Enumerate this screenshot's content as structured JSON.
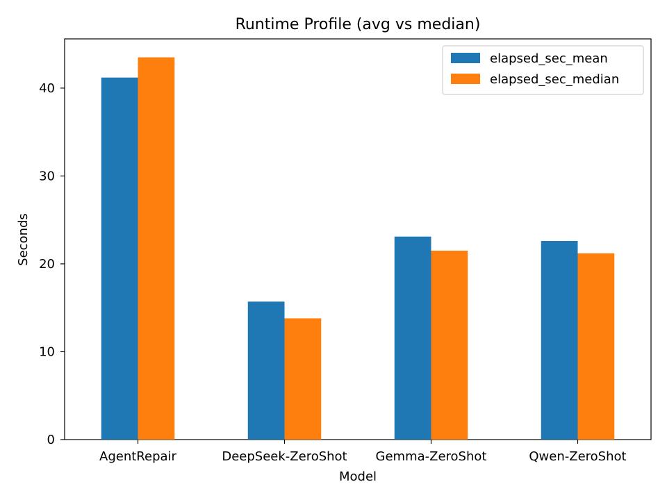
{
  "chart_data": {
    "type": "bar",
    "title": "Runtime Profile (avg vs median)",
    "xlabel": "Model",
    "ylabel": "Seconds",
    "categories": [
      "AgentRepair",
      "DeepSeek-ZeroShot",
      "Gemma-ZeroShot",
      "Qwen-ZeroShot"
    ],
    "series": [
      {
        "name": "elapsed_sec_mean",
        "color": "#1f77b4",
        "values": [
          41.2,
          15.7,
          23.1,
          22.6
        ]
      },
      {
        "name": "elapsed_sec_median",
        "color": "#ff7f0e",
        "values": [
          43.5,
          13.8,
          21.5,
          21.2
        ]
      }
    ],
    "ylim": [
      0,
      45.6
    ],
    "yticks": [
      0,
      10,
      20,
      30,
      40
    ],
    "grid": false,
    "legend_position": "top-right"
  }
}
